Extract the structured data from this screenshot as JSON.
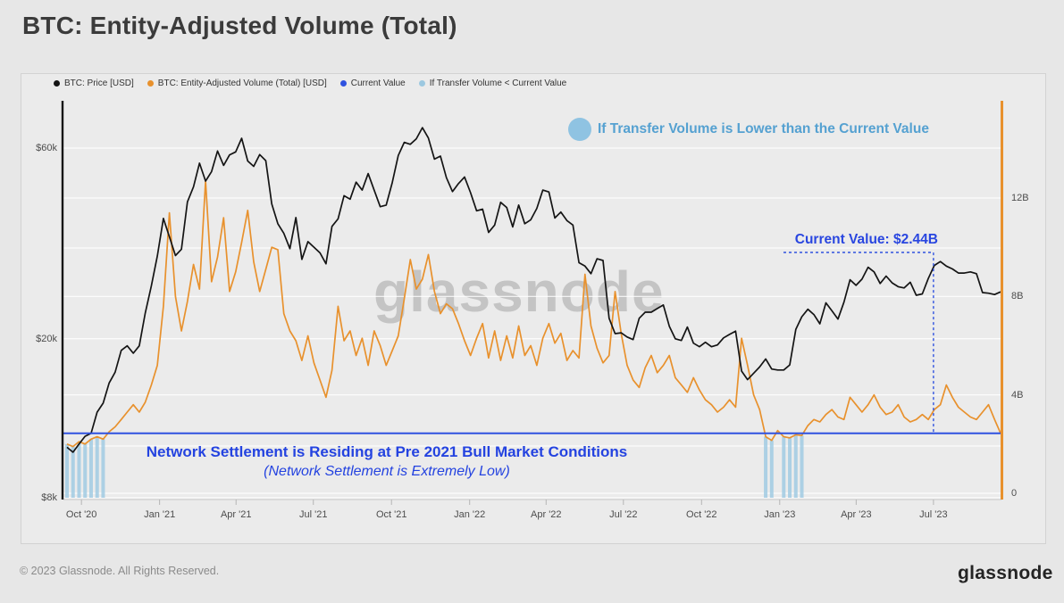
{
  "title": "BTC: Entity-Adjusted Volume (Total)",
  "watermark": "glassnode",
  "footer": {
    "copyright": "© 2023 Glassnode. All Rights Reserved.",
    "logo_text": "glassnode"
  },
  "legend": [
    {
      "label": "BTC: Price [USD]",
      "color": "#141414"
    },
    {
      "label": "BTC: Entity-Adjusted Volume (Total) [USD]",
      "color": "#e8912d"
    },
    {
      "label": "Current Value",
      "color": "#2f52e0"
    },
    {
      "label": "If Transfer Volume < Current Value",
      "color": "#9cc8e0"
    }
  ],
  "annotations": {
    "transfer_note": "If Transfer Volume is Lower than the Current Value",
    "current_value_label": "Current Value: $2.44B",
    "settlement_line1": "Network Settlement is Residing at Pre 2021 Bull Market Conditions",
    "settlement_line2": "(Network Settlement is Extremely Low)"
  },
  "colors": {
    "price_line": "#141414",
    "volume_line": "#e8912d",
    "current_value_line": "#2f52e0",
    "below_current_fill": "#a5cde3",
    "annotation_blue": "#2443e0",
    "annotation_lightblue": "#55a1d1"
  },
  "chart_data": {
    "type": "line",
    "title": "BTC: Entity-Adjusted Volume (Total)",
    "interval": "weekly",
    "x_start_date": "2020-09-14",
    "x_end_date": "2023-09-18",
    "x_ticks": [
      {
        "label": "Oct '20",
        "date": "2020-10-01"
      },
      {
        "label": "Jan '21",
        "date": "2021-01-01"
      },
      {
        "label": "Apr '21",
        "date": "2021-04-01"
      },
      {
        "label": "Jul '21",
        "date": "2021-07-01"
      },
      {
        "label": "Oct '21",
        "date": "2021-10-01"
      },
      {
        "label": "Jan '22",
        "date": "2022-01-01"
      },
      {
        "label": "Apr '22",
        "date": "2022-04-01"
      },
      {
        "label": "Jul '22",
        "date": "2022-07-01"
      },
      {
        "label": "Oct '22",
        "date": "2022-10-01"
      },
      {
        "label": "Jan '23",
        "date": "2023-01-01"
      },
      {
        "label": "Apr '23",
        "date": "2023-04-01"
      },
      {
        "label": "Jul '23",
        "date": "2023-07-01"
      }
    ],
    "left_axis": {
      "scale": "log",
      "unit": "USD",
      "ticks": [
        {
          "label": "$60k",
          "value": 60
        },
        {
          "label": "$20k",
          "value": 20
        },
        {
          "label": "$8k",
          "value": 8
        }
      ]
    },
    "right_axis": {
      "scale": "linear",
      "unit": "USD billions",
      "ticks": [
        {
          "label": "12B",
          "value": 12
        },
        {
          "label": "8B",
          "value": 8
        },
        {
          "label": "4B",
          "value": 4
        },
        {
          "label": "0",
          "value": 0
        }
      ]
    },
    "current_value_billion": 2.44,
    "callout_date": "2023-07-01",
    "highlight_when_below_current_value": true,
    "series": [
      {
        "name": "BTC: Price [USD]",
        "axis": "left",
        "unit": "USD thousands",
        "color": "#141414",
        "values": [
          10.7,
          10.4,
          10.9,
          11.4,
          11.6,
          13.1,
          13.8,
          15.5,
          16.5,
          18.7,
          19.2,
          18.4,
          19.2,
          23.2,
          27.1,
          32.2,
          40.0,
          36.0,
          32.3,
          33.5,
          44.0,
          48.0,
          55.0,
          49.6,
          52.4,
          59.0,
          54.3,
          57.7,
          58.7,
          63.5,
          55.7,
          54.0,
          57.8,
          55.8,
          43.5,
          38.8,
          36.7,
          33.6,
          40.2,
          31.6,
          35.0,
          33.9,
          32.8,
          30.8,
          38.2,
          39.9,
          45.6,
          44.7,
          49.3,
          47.1,
          51.8,
          47.1,
          42.8,
          43.2,
          49.2,
          57.5,
          62.0,
          61.3,
          63.3,
          67.5,
          63.6,
          56.3,
          57.3,
          50.6,
          46.7,
          48.9,
          50.8,
          46.4,
          41.8,
          42.2,
          36.9,
          38.5,
          43.9,
          42.6,
          38.1,
          43.2,
          38.8,
          39.7,
          42.4,
          47.1,
          46.6,
          40.1,
          41.5,
          39.5,
          38.5,
          31.0,
          30.4,
          29.1,
          31.7,
          31.4,
          22.5,
          20.6,
          20.7,
          20.2,
          19.9,
          22.5,
          23.3,
          23.3,
          23.8,
          24.3,
          21.5,
          20.0,
          19.8,
          21.4,
          19.5,
          19.1,
          19.6,
          19.1,
          19.3,
          20.1,
          20.5,
          20.9,
          16.6,
          15.8,
          16.4,
          17.0,
          17.8,
          16.8,
          16.7,
          16.7,
          17.2,
          21.1,
          22.7,
          23.7,
          23.0,
          21.8,
          24.6,
          23.5,
          22.4,
          24.7,
          28.1,
          27.2,
          28.2,
          30.2,
          29.4,
          27.5,
          28.7,
          27.6,
          27.0,
          26.8,
          27.7,
          25.7,
          25.9,
          28.3,
          30.5,
          31.2,
          30.4,
          29.9,
          29.2,
          29.2,
          29.4,
          29.1,
          26.1,
          26.0,
          25.8,
          26.2
        ]
      },
      {
        "name": "BTC: Entity-Adjusted Volume (Total) [USD]",
        "axis": "right",
        "unit": "USD billions",
        "color": "#e8912d",
        "values": [
          2.0,
          1.9,
          2.1,
          2.0,
          2.2,
          2.3,
          2.2,
          2.5,
          2.7,
          3.0,
          3.3,
          3.6,
          3.3,
          3.7,
          4.4,
          5.2,
          7.6,
          11.4,
          8.0,
          6.6,
          7.8,
          9.3,
          8.3,
          12.7,
          8.6,
          9.6,
          11.2,
          8.2,
          9.0,
          10.2,
          11.5,
          9.4,
          8.2,
          9.1,
          10.0,
          9.9,
          7.3,
          6.6,
          6.2,
          5.4,
          6.4,
          5.3,
          4.6,
          3.9,
          5.0,
          7.6,
          6.2,
          6.6,
          5.6,
          6.3,
          5.2,
          6.6,
          6.0,
          5.2,
          5.8,
          6.4,
          7.9,
          9.5,
          8.3,
          8.7,
          9.7,
          8.2,
          7.3,
          7.7,
          7.5,
          6.9,
          6.2,
          5.6,
          6.3,
          6.9,
          5.5,
          6.6,
          5.4,
          6.4,
          5.5,
          6.8,
          5.6,
          6.0,
          5.2,
          6.3,
          6.9,
          6.1,
          6.5,
          5.4,
          5.8,
          5.5,
          8.9,
          6.8,
          5.9,
          5.3,
          5.6,
          8.2,
          6.5,
          5.2,
          4.6,
          4.3,
          5.1,
          5.6,
          4.9,
          5.2,
          5.6,
          4.7,
          4.4,
          4.1,
          4.7,
          4.2,
          3.8,
          3.6,
          3.3,
          3.5,
          3.8,
          3.5,
          6.3,
          5.2,
          4.0,
          3.4,
          2.3,
          2.15,
          2.55,
          2.3,
          2.25,
          2.38,
          2.35,
          2.75,
          3.0,
          2.9,
          3.2,
          3.4,
          3.1,
          3.0,
          3.9,
          3.6,
          3.3,
          3.6,
          4.0,
          3.5,
          3.2,
          3.3,
          3.6,
          3.1,
          2.9,
          3.0,
          3.2,
          3.0,
          3.4,
          3.6,
          4.4,
          3.9,
          3.5,
          3.3,
          3.1,
          3.0,
          3.3,
          3.6,
          3.0,
          2.44
        ]
      }
    ]
  }
}
